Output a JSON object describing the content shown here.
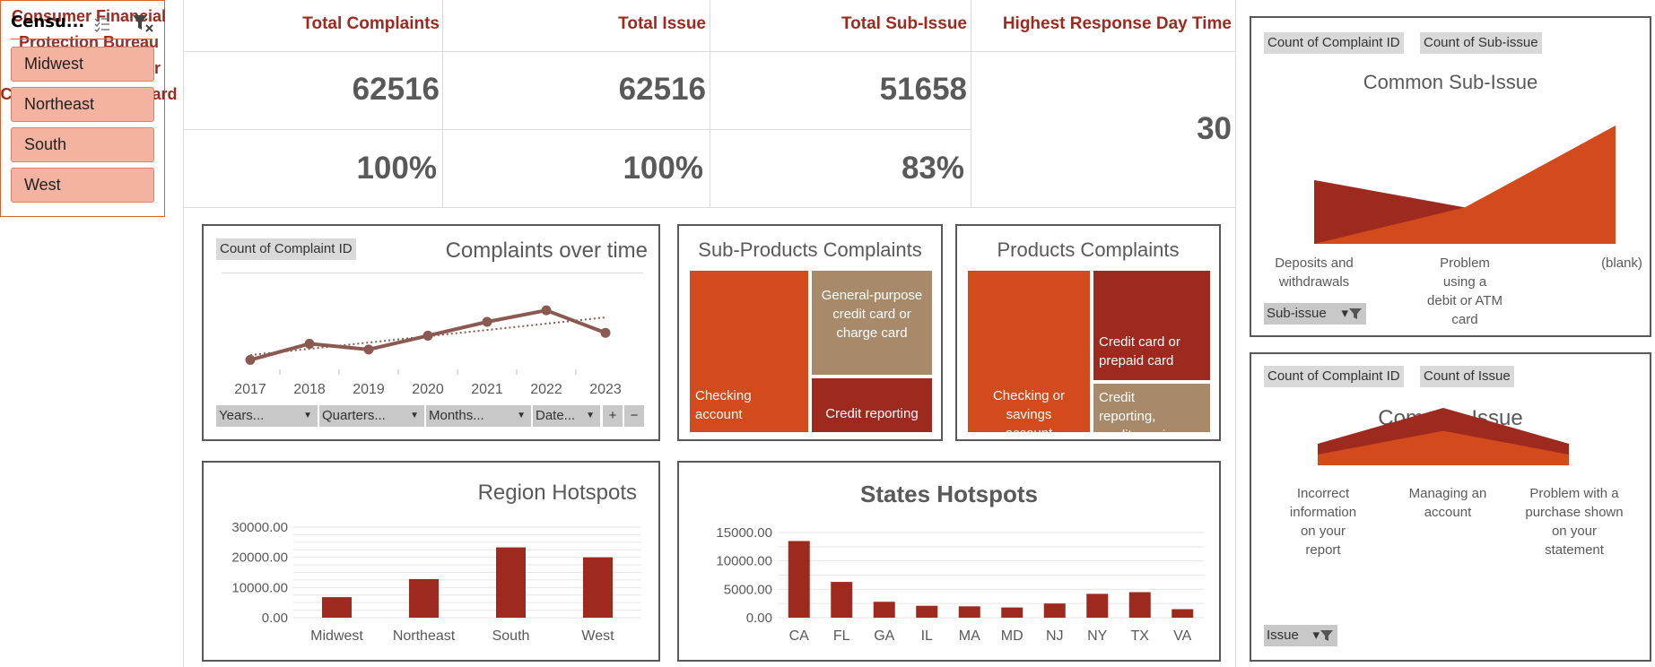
{
  "title": "Consumer Financial Protection Bureau (CFPB) Comsumer Complaints Dashboard",
  "slicer": {
    "title": "Censu...",
    "items": [
      "Midwest",
      "Northeast",
      "South",
      "West"
    ]
  },
  "kpis": [
    {
      "label": "Total Complaints",
      "value": "62516",
      "percent": "100%"
    },
    {
      "label": "Total Issue",
      "value": "62516",
      "percent": "100%"
    },
    {
      "label": "Total Sub-Issue",
      "value": "51658",
      "percent": "83%"
    },
    {
      "label": "Highest Response Day Time",
      "value": "30"
    }
  ],
  "colors": {
    "dark_red": "#9e2a1f",
    "orange": "#d34a1c",
    "tan": "#a88a6a",
    "line": "#8a5a52"
  },
  "complaints_over_time": {
    "field": "Count of Complaint ID",
    "filters": [
      "Years...",
      "Quarters...",
      "Months...",
      "Date..."
    ]
  },
  "sub_issue_panel": {
    "fields": [
      "Count of Complaint ID",
      "Count of Sub-issue"
    ],
    "filter": "Sub-issue"
  },
  "issue_panel": {
    "fields": [
      "Count of Complaint ID",
      "Count of Issue"
    ],
    "filter": "Issue"
  },
  "chart_data": [
    {
      "type": "line",
      "title": "Complaints over time",
      "x": [
        "2017",
        "2018",
        "2019",
        "2020",
        "2021",
        "2022",
        "2023"
      ],
      "series": [
        {
          "values": [
            3200,
            6000,
            5000,
            7400,
            9800,
            11800,
            7900
          ]
        }
      ],
      "trendline": true,
      "ylim": [
        0,
        14000
      ],
      "grid": false
    },
    {
      "type": "treemap",
      "title": "Sub-Products Complaints",
      "categories": [
        "Checking account",
        "General-purpose credit card or charge card",
        "Credit reporting"
      ],
      "values": [
        25000,
        14000,
        10000
      ]
    },
    {
      "type": "treemap",
      "title": "Products Complaints",
      "categories": [
        "Checking or savings account",
        "Credit card or prepaid card",
        "Credit reporting, credit repair..."
      ],
      "values": [
        26000,
        20000,
        11000
      ]
    },
    {
      "type": "bar",
      "title": "Region Hotspots",
      "categories": [
        "Midwest",
        "Northeast",
        "South",
        "West"
      ],
      "values": [
        6800,
        12800,
        23300,
        20000
      ],
      "ylim": [
        0,
        30000
      ],
      "ticks": [
        "0.00",
        "10000.00",
        "20000.00",
        "30000.00"
      ],
      "grid": true
    },
    {
      "type": "bar",
      "title": "States Hotspots",
      "categories": [
        "CA",
        "FL",
        "GA",
        "IL",
        "MA",
        "MD",
        "NJ",
        "NY",
        "TX",
        "VA"
      ],
      "values": [
        13500,
        6300,
        2800,
        2100,
        2000,
        1800,
        2500,
        4200,
        4500,
        1500
      ],
      "ylim": [
        0,
        15000
      ],
      "ticks": [
        "0.00",
        "5000.00",
        "10000.00",
        "15000.00"
      ],
      "grid": true
    },
    {
      "type": "area",
      "title": "Common Sub-Issue",
      "categories": [
        "Deposits and withdrawals",
        "Problem using a debit or ATM card",
        "(blank)"
      ],
      "series": [
        {
          "values": [
            7000,
            4000,
            0
          ]
        },
        {
          "values": [
            0,
            4000,
            13000
          ]
        }
      ],
      "ylim": [
        0,
        13000
      ]
    },
    {
      "type": "area",
      "title": "Common Issue",
      "categories": [
        "Incorrect information on your report",
        "Managing an account",
        "Problem with a purchase shown on your statement"
      ],
      "series": [
        {
          "values": [
            3000,
            8000,
            3000
          ]
        },
        {
          "values": [
            1500,
            4800,
            1500
          ]
        }
      ],
      "ylim": [
        0,
        8000
      ]
    }
  ]
}
